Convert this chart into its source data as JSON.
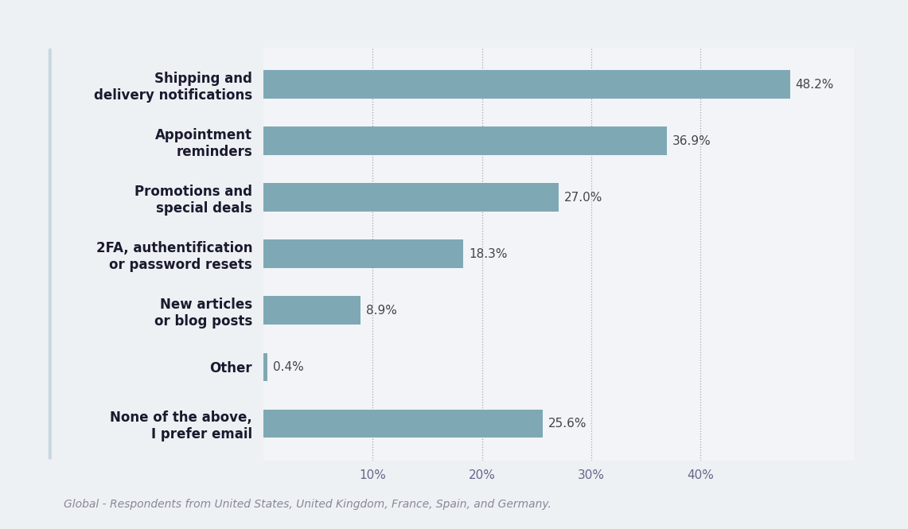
{
  "categories": [
    "None of the above,\nI prefer email",
    "Other",
    "New articles\nor blog posts",
    "2FA, authentification\nor password resets",
    "Promotions and\nspecial deals",
    "Appointment\nreminders",
    "Shipping and\ndelivery notifications"
  ],
  "values": [
    25.6,
    0.4,
    8.9,
    18.3,
    27.0,
    36.9,
    48.2
  ],
  "bar_color": "#7fa8b5",
  "value_labels": [
    "25.6%",
    "0.4%",
    "8.9%",
    "18.3%",
    "27.0%",
    "36.9%",
    "48.2%"
  ],
  "xlabel_ticks": [
    10,
    20,
    30,
    40
  ],
  "xlabel_tick_labels": [
    "10%",
    "20%",
    "30%",
    "40%"
  ],
  "xlim": [
    0,
    54
  ],
  "ylim": [
    -0.65,
    6.65
  ],
  "background_color": "#eef1f4",
  "plot_bg_color": "#f2f4f7",
  "footnote": "Global - Respondents from United States, United Kingdom, France, Spain, and Germany.",
  "label_fontsize": 12,
  "tick_fontsize": 11,
  "footnote_fontsize": 10,
  "value_label_fontsize": 11,
  "bar_height": 0.5,
  "left_accent_color": "#c8d8e0"
}
